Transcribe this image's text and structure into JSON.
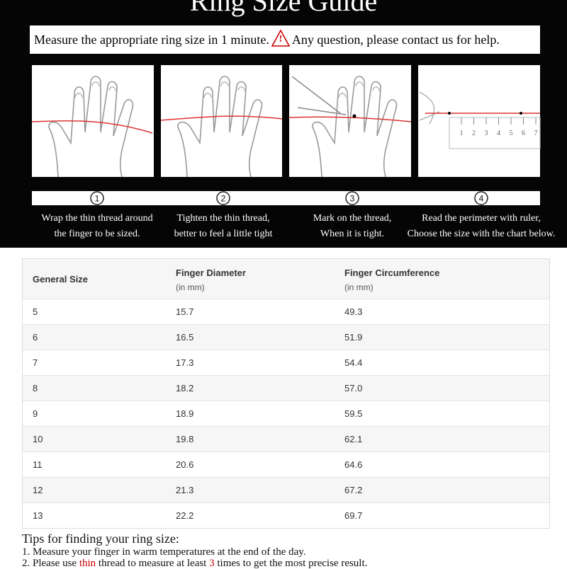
{
  "header": {
    "title": "Ring Size Guide"
  },
  "notice": {
    "before": "Measure the appropriate ring size in 1 minute.",
    "icon": "!",
    "after": "Any question, please contact us for help."
  },
  "steps": [
    {
      "number": "1",
      "lines": [
        "Wrap the thin thread around",
        "the finger to be sized."
      ]
    },
    {
      "number": "2",
      "lines": [
        "Tighten the thin thread,",
        "better to feel a little tight"
      ]
    },
    {
      "number": "3",
      "lines": [
        "Mark on the thread,",
        "When it is tight."
      ]
    },
    {
      "number": "4",
      "lines": [
        "Read the perimeter with ruler,",
        "Choose the size with the chart below."
      ]
    }
  ],
  "ruler": {
    "labels": [
      "1",
      "2",
      "3",
      "4",
      "5",
      "6",
      "7"
    ]
  },
  "table": {
    "header": [
      {
        "title": "General Size"
      },
      {
        "title": "Finger Diameter",
        "unit": "(in mm)"
      },
      {
        "title": "Finger Circumference",
        "unit": "(in mm)"
      }
    ],
    "rows": [
      [
        "5",
        "15.7",
        "49.3"
      ],
      [
        "6",
        "16.5",
        "51.9"
      ],
      [
        "7",
        "17.3",
        "54.4"
      ],
      [
        "8",
        "18.2",
        "57.0"
      ],
      [
        "9",
        "18.9",
        "59.5"
      ],
      [
        "10",
        "19.8",
        "62.1"
      ],
      [
        "11",
        "20.6",
        "64.6"
      ],
      [
        "12",
        "21.3",
        "67.2"
      ],
      [
        "13",
        "22.2",
        "69.7"
      ]
    ]
  },
  "tips": {
    "title": "Tips for finding your ring size:",
    "items": [
      [
        "1. Measure your finger in warm temperatures at the end of the day."
      ],
      [
        "2. Please use ",
        "thin",
        " thread to measure at least ",
        "3",
        " times to get the most precise result."
      ]
    ]
  }
}
